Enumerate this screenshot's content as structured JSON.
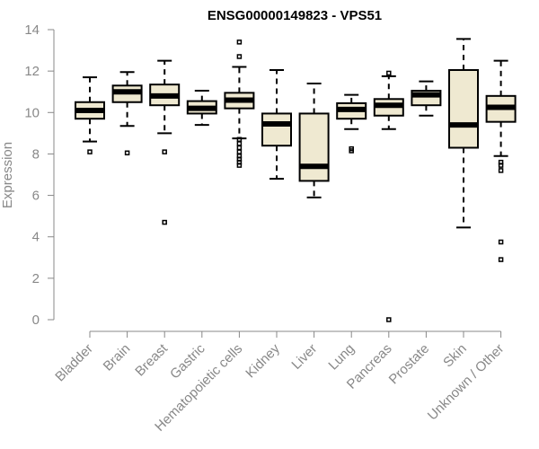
{
  "chart_data": {
    "type": "boxplot",
    "title": "ENSG00000149823 - VPS51",
    "ylabel": "Expression",
    "xlabel": "",
    "ylim": [
      0,
      14
    ],
    "yticks": [
      0,
      2,
      4,
      6,
      8,
      10,
      12,
      14
    ],
    "grid": false,
    "box_color": "#efe9d1",
    "categories": [
      "Bladder",
      "Brain",
      "Breast",
      "Gastric",
      "Hematopoietic cells",
      "Kidney",
      "Liver",
      "Lung",
      "Pancreas",
      "Prostate",
      "Skin",
      "Unknown / Other"
    ],
    "boxes": [
      {
        "min": 8.6,
        "q1": 9.7,
        "median": 10.1,
        "q3": 10.5,
        "max": 11.7,
        "outliers": [
          8.1
        ]
      },
      {
        "min": 9.35,
        "q1": 10.5,
        "median": 11.0,
        "q3": 11.3,
        "max": 11.95,
        "outliers": [
          8.05
        ]
      },
      {
        "min": 9.0,
        "q1": 10.35,
        "median": 10.8,
        "q3": 11.35,
        "max": 12.5,
        "outliers": [
          8.1,
          4.7
        ]
      },
      {
        "min": 9.4,
        "q1": 9.95,
        "median": 10.2,
        "q3": 10.55,
        "max": 11.05,
        "outliers": []
      },
      {
        "min": 8.75,
        "q1": 10.2,
        "median": 10.6,
        "q3": 10.95,
        "max": 12.2,
        "outliers": [
          13.4,
          12.7,
          8.7,
          8.5,
          8.3,
          8.1,
          7.9,
          7.75,
          7.6,
          7.45
        ]
      },
      {
        "min": 6.8,
        "q1": 8.4,
        "median": 9.45,
        "q3": 9.95,
        "max": 12.05,
        "outliers": []
      },
      {
        "min": 5.9,
        "q1": 6.7,
        "median": 7.4,
        "q3": 9.95,
        "max": 11.4,
        "outliers": []
      },
      {
        "min": 9.2,
        "q1": 9.7,
        "median": 10.15,
        "q3": 10.45,
        "max": 10.85,
        "outliers": [
          8.25,
          8.15
        ]
      },
      {
        "min": 9.2,
        "q1": 9.85,
        "median": 10.35,
        "q3": 10.65,
        "max": 11.75,
        "outliers": [
          11.9,
          0.0
        ]
      },
      {
        "min": 9.85,
        "q1": 10.35,
        "median": 10.85,
        "q3": 11.05,
        "max": 11.5,
        "outliers": []
      },
      {
        "min": 4.45,
        "q1": 8.3,
        "median": 9.4,
        "q3": 12.05,
        "max": 13.55,
        "outliers": []
      },
      {
        "min": 7.9,
        "q1": 9.55,
        "median": 10.25,
        "q3": 10.8,
        "max": 12.5,
        "outliers": [
          7.6,
          7.45,
          7.2,
          3.75,
          2.9
        ]
      }
    ]
  }
}
